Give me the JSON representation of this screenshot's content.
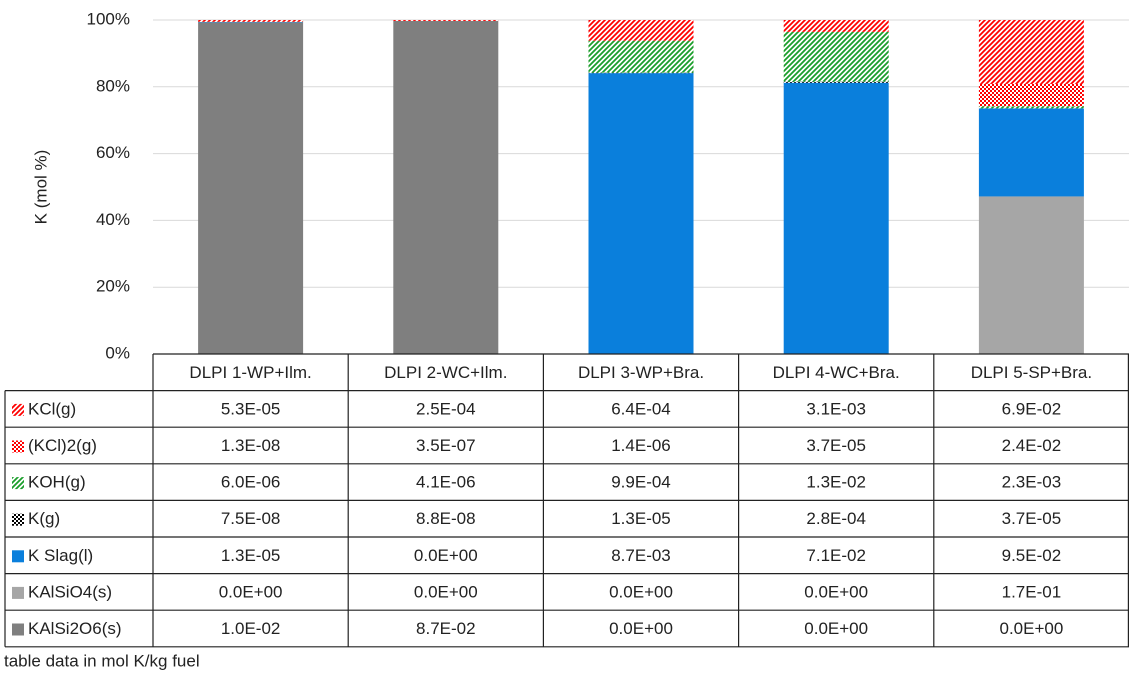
{
  "chart_data": {
    "type": "bar",
    "stacking": "percent",
    "y_label": "K (mol %)",
    "footnote": "table data in mol K/kg fuel",
    "categories": [
      "DLPI 1-WP+Ilm.",
      "DLPI 2-WC+Ilm.",
      "DLPI 3-WP+Bra.",
      "DLPI 4-WC+Bra.",
      "DLPI 5-SP+Bra."
    ],
    "ylim": [
      0,
      100
    ],
    "yticks": [
      {
        "value": 0,
        "label": "0%"
      },
      {
        "value": 20,
        "label": "20%"
      },
      {
        "value": 40,
        "label": "40%"
      },
      {
        "value": 60,
        "label": "60%"
      },
      {
        "value": 80,
        "label": "80%"
      },
      {
        "value": 100,
        "label": "100%"
      }
    ],
    "grid": true,
    "series": [
      {
        "name": "KCl(g)",
        "color": "#ff0000",
        "pattern": "diagonal",
        "values": [
          5.3e-05,
          0.00025,
          0.00064,
          0.0031,
          0.069
        ],
        "value_labels": [
          "5.3E-05",
          "2.5E-04",
          "6.4E-04",
          "3.1E-03",
          "6.9E-02"
        ]
      },
      {
        "name": "(KCl)2(g)",
        "color": "#ff0000",
        "pattern": "checker",
        "values": [
          1.3e-08,
          3.5e-07,
          1.4e-06,
          3.7e-05,
          0.024
        ],
        "value_labels": [
          "1.3E-08",
          "3.5E-07",
          "1.4E-06",
          "3.7E-05",
          "2.4E-02"
        ]
      },
      {
        "name": "KOH(g)",
        "color": "#1a9e2a",
        "pattern": "diagonal",
        "values": [
          6e-06,
          4.1e-06,
          0.00099,
          0.013,
          0.0023
        ],
        "value_labels": [
          "6.0E-06",
          "4.1E-06",
          "9.9E-04",
          "1.3E-02",
          "2.3E-03"
        ]
      },
      {
        "name": "K(g)",
        "color": "#000000",
        "pattern": "checker",
        "values": [
          7.5e-08,
          8.8e-08,
          1.3e-05,
          0.00028,
          3.7e-05
        ],
        "value_labels": [
          "7.5E-08",
          "8.8E-08",
          "1.3E-05",
          "2.8E-04",
          "3.7E-05"
        ]
      },
      {
        "name": "K Slag(l)",
        "color": "#0a7fdc",
        "pattern": "solid",
        "values": [
          1.3e-05,
          0,
          0.0087,
          0.071,
          0.095
        ],
        "value_labels": [
          "1.3E-05",
          "0.0E+00",
          "8.7E-03",
          "7.1E-02",
          "9.5E-02"
        ]
      },
      {
        "name": "KAlSiO4(s)",
        "color": "#a6a6a6",
        "pattern": "solid",
        "values": [
          0,
          0,
          0,
          0,
          0.17
        ],
        "value_labels": [
          "0.0E+00",
          "0.0E+00",
          "0.0E+00",
          "0.0E+00",
          "1.7E-01"
        ]
      },
      {
        "name": "KAlSi2O6(s)",
        "color": "#7f7f7f",
        "pattern": "solid",
        "values": [
          0.01,
          0.087,
          0,
          0,
          0
        ],
        "value_labels": [
          "1.0E-02",
          "8.7E-02",
          "0.0E+00",
          "0.0E+00",
          "0.0E+00"
        ]
      }
    ]
  }
}
